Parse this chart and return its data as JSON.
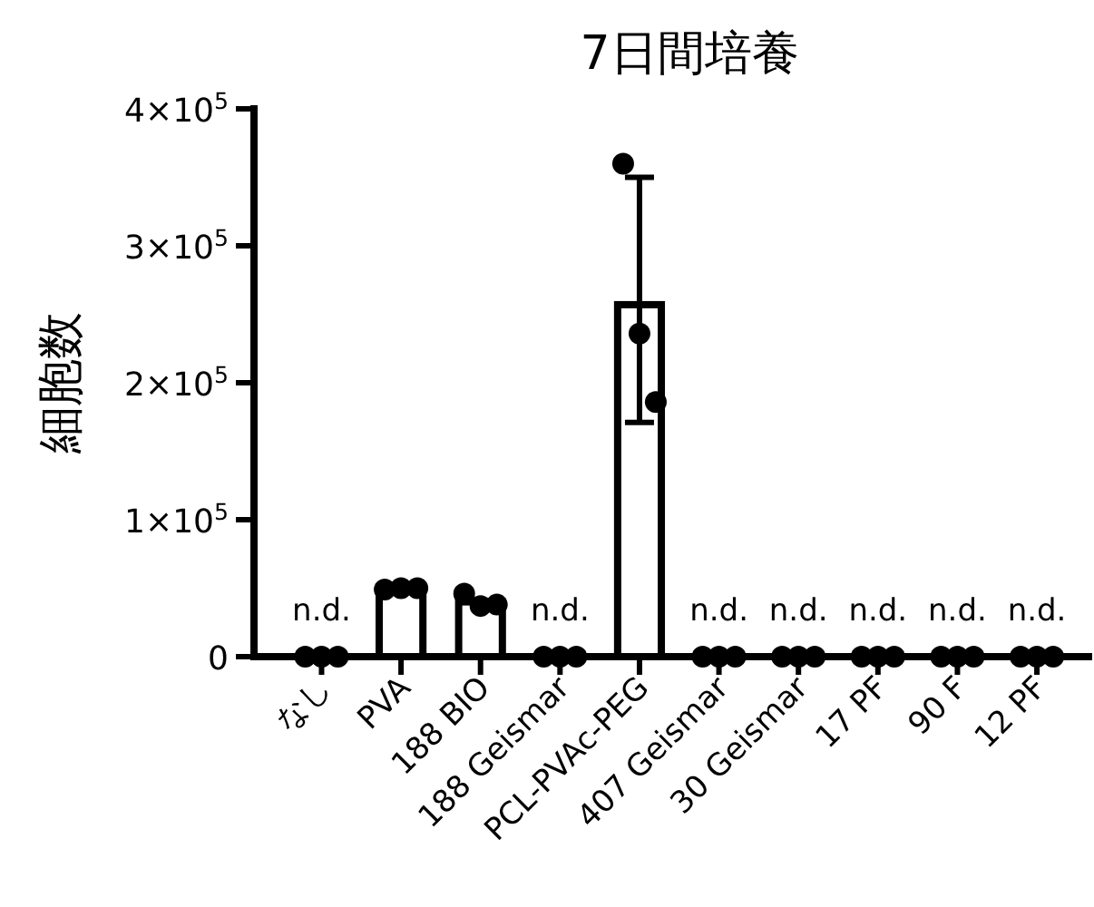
{
  "chart_data": {
    "type": "bar",
    "title": "7日間培養",
    "ylabel": "細胞数",
    "categories": [
      "なし",
      "PVA",
      "188 BIO",
      "188 Geismar",
      "PCL-PVAc-PEG",
      "407 Geismar",
      "30 Geismar",
      "17 PF",
      "90 F",
      "12 PF"
    ],
    "ylim": [
      0,
      400000
    ],
    "yticks": [
      0,
      {
        "value": 100000,
        "label": "1×10$^{5}$"
      },
      {
        "value": 200000,
        "label": "2×10$^{5}$"
      },
      {
        "value": 300000,
        "label": "3×10$^{5}$"
      },
      {
        "value": 400000,
        "label": "4×10$^{5}$"
      }
    ],
    "series": [
      {
        "color": "#000000",
        "values": [
          0,
          50000,
          40000,
          0,
          257000,
          0,
          0,
          0,
          0,
          0
        ],
        "errors": [
          null,
          null,
          null,
          null,
          [
            171000,
            350000
          ],
          null,
          null,
          null,
          null,
          null
        ],
        "value_labels": [
          "n.d.",
          null,
          null,
          "n.d.",
          null,
          "n.d.",
          "n.d.",
          "n.d.",
          "n.d.",
          "n.d."
        ]
      },
      {
        "type": "scatter",
        "color": "#000000",
        "marker": "circle",
        "x": [
          "なし",
          "なし",
          "なし",
          "PVA",
          "PVA",
          "PVA",
          "188 BIO",
          "188 BIO",
          "188 BIO",
          "188 Geismar",
          "188 Geismar",
          "188 Geismar",
          "PCL-PVAc-PEG",
          "PCL-PVAc-PEG",
          "PCL-PVAc-PEG",
          "407 Geismar",
          "407 Geismar",
          "407 Geismar",
          "30 Geismar",
          "30 Geismar",
          "30 Geismar",
          "17 PF",
          "17 PF",
          "17 PF",
          "90 F",
          "90 F",
          "90 F",
          "12 PF",
          "12 PF",
          "12 PF"
        ],
        "values": [
          0,
          0,
          0,
          49000,
          50000,
          50000,
          46000,
          37000,
          38000,
          0,
          0,
          0,
          360000,
          236000,
          186000,
          0,
          0,
          0,
          0,
          0,
          0,
          0,
          0,
          0,
          0,
          0,
          0,
          0,
          0,
          0
        ]
      }
    ],
    "grid": false
  }
}
